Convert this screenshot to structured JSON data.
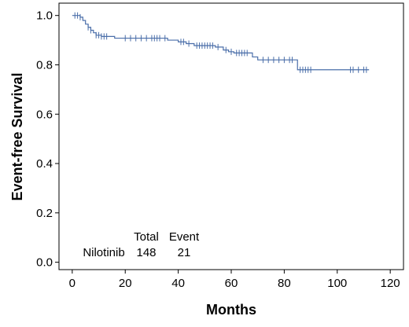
{
  "chart_data": {
    "type": "line",
    "subtype": "kaplan-meier",
    "xlabel": "Months",
    "ylabel": "Event-free Survival",
    "xlim": [
      -5,
      125
    ],
    "ylim": [
      -0.03,
      1.05
    ],
    "xticks": [
      0,
      20,
      40,
      60,
      80,
      100,
      120
    ],
    "yticks": [
      "0.0",
      "0.2",
      "0.4",
      "0.6",
      "0.8",
      "1.0"
    ],
    "yticks_values": [
      0.0,
      0.2,
      0.4,
      0.6,
      0.8,
      1.0
    ],
    "grid": false,
    "series": [
      {
        "color": "#4a6ea9",
        "step_points": [
          [
            0,
            1.0
          ],
          [
            3,
            0.993
          ],
          [
            4,
            0.98
          ],
          [
            5,
            0.965
          ],
          [
            6,
            0.952
          ],
          [
            7,
            0.94
          ],
          [
            8,
            0.93
          ],
          [
            9,
            0.92
          ],
          [
            11,
            0.915
          ],
          [
            16,
            0.908
          ],
          [
            36,
            0.9
          ],
          [
            40,
            0.893
          ],
          [
            43,
            0.886
          ],
          [
            46,
            0.878
          ],
          [
            54,
            0.872
          ],
          [
            57,
            0.86
          ],
          [
            59,
            0.853
          ],
          [
            61,
            0.848
          ],
          [
            68,
            0.832
          ],
          [
            70,
            0.82
          ],
          [
            85,
            0.78
          ],
          [
            112,
            0.78
          ]
        ],
        "censor_x": [
          1,
          2,
          3,
          6,
          7,
          9,
          10,
          11,
          12,
          13,
          20,
          22,
          24,
          26,
          28,
          30,
          31,
          32,
          33,
          35,
          41,
          42,
          44,
          47,
          48,
          49,
          50,
          51,
          52,
          53,
          55,
          58,
          60,
          62,
          63,
          64,
          65,
          66,
          72,
          74,
          76,
          78,
          80,
          82,
          83,
          86,
          87,
          88,
          89,
          90,
          105,
          106,
          108,
          110,
          111
        ]
      }
    ],
    "annotations": {
      "total_label": "Total",
      "event_label": "Event",
      "group_name": "Nilotinib",
      "total_value": "148",
      "event_value": "21"
    }
  }
}
